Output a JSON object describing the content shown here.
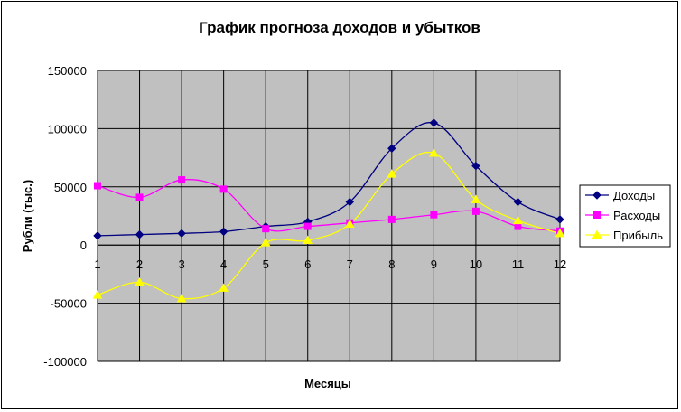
{
  "chart_data": {
    "type": "line",
    "title": "График прогноза доходов и убытков",
    "xlabel": "Месяцы",
    "ylabel": "Рубли (тыс.)",
    "x": [
      "1",
      "2",
      "3",
      "4",
      "5",
      "6",
      "7",
      "8",
      "9",
      "10",
      "11",
      "12"
    ],
    "yticks": [
      "150000",
      "100000",
      "50000",
      "0",
      "-50000",
      "-100000"
    ],
    "ylim": [
      -100000,
      150000
    ],
    "grid": true,
    "smooth": true,
    "plot_background": "#c0c0c0",
    "legend_position": "right",
    "series": [
      {
        "name": "Доходы",
        "color": "#000080",
        "marker": "diamond",
        "values": [
          8000,
          9000,
          10000,
          11500,
          16000,
          20000,
          37000,
          83000,
          105000,
          68000,
          37000,
          22000
        ]
      },
      {
        "name": "Расходы",
        "color": "#ff00ff",
        "marker": "square",
        "values": [
          51000,
          41000,
          56000,
          48000,
          14000,
          16000,
          19000,
          22000,
          26000,
          29000,
          16000,
          12000
        ]
      },
      {
        "name": "Прибыль",
        "color": "#ffff00",
        "marker": "triangle",
        "values": [
          -43000,
          -32000,
          -46000,
          -37000,
          2000,
          4000,
          18000,
          61000,
          79000,
          39000,
          21000,
          10000
        ]
      }
    ]
  }
}
